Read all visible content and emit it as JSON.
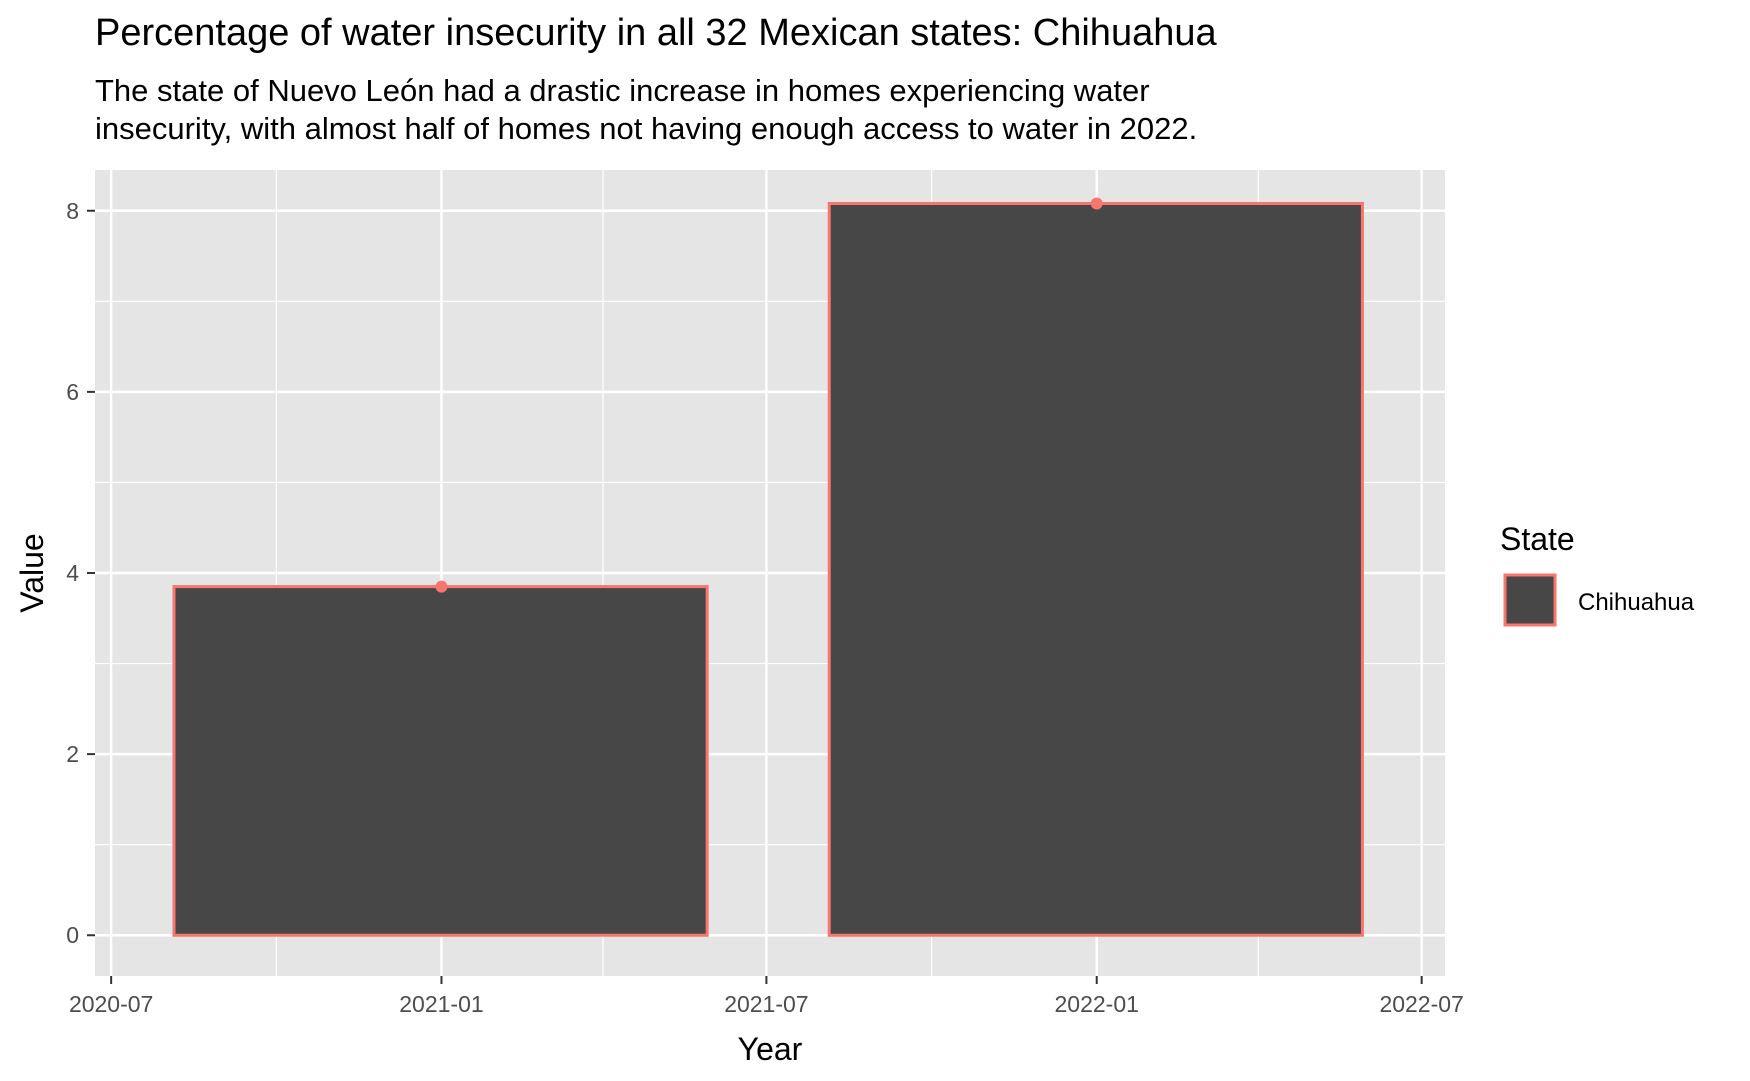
{
  "chart_data": {
    "type": "bar",
    "title": "Percentage of water insecurity in all 32 Mexican states: Chihuahua",
    "subtitle_lines": [
      "The state of Nuevo León had a drastic increase in homes experiencing water",
      "insecurity, with almost half of homes not having enough access to water in 2022."
    ],
    "xlabel": "Year",
    "ylabel": "Value",
    "x_domain": [
      "2020-06-22",
      "2022-07-14"
    ],
    "x_ticks": [
      {
        "date": "2020-07-01",
        "label": "2020-07"
      },
      {
        "date": "2021-01-01",
        "label": "2021-01"
      },
      {
        "date": "2021-07-01",
        "label": "2021-07"
      },
      {
        "date": "2022-01-01",
        "label": "2022-01"
      },
      {
        "date": "2022-07-01",
        "label": "2022-07"
      }
    ],
    "x_minor_dates": [
      "2020-10-01",
      "2021-04-01",
      "2021-10-01",
      "2022-04-01"
    ],
    "ylim": [
      -0.45,
      8.45
    ],
    "y_ticks": [
      0,
      2,
      4,
      6,
      8
    ],
    "y_minor": [
      1,
      3,
      5,
      7
    ],
    "grid": true,
    "series": [
      {
        "name": "Chihuahua",
        "fill": "#474747",
        "outline": "#f8766d",
        "points": [
          {
            "x": "2021-01-01",
            "x_start": "2020-08-05",
            "x_end": "2021-05-29",
            "y": 3.85
          },
          {
            "x": "2022-01-01",
            "x_start": "2021-08-05",
            "x_end": "2022-05-29",
            "y": 8.08
          }
        ]
      }
    ],
    "legend": {
      "title": "State",
      "position": "right",
      "entries": [
        "Chihuahua"
      ]
    },
    "colors": {
      "panel": "#e5e5e5",
      "grid": "#ffffff",
      "bar_fill": "#474747",
      "bar_outline": "#f8766d"
    }
  }
}
